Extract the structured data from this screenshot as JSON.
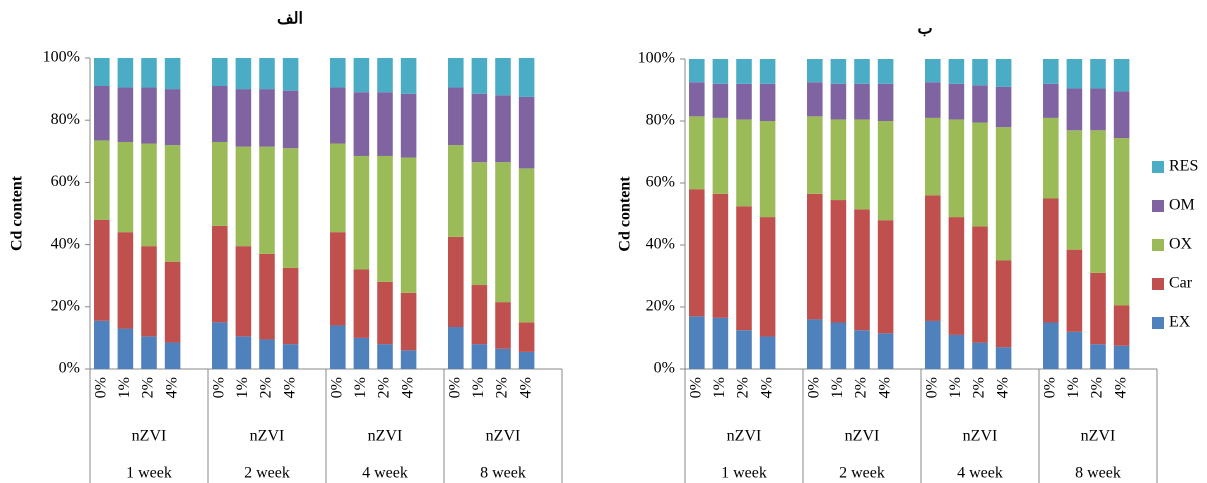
{
  "chart_data": [
    {
      "type": "stacked_bar",
      "title": "الف",
      "ylabel": "Cd content",
      "categories": [
        "0%",
        "1%",
        "2%",
        "4%",
        null,
        "0%",
        "1%",
        "2%",
        "4%",
        null,
        "0%",
        "1%",
        "2%",
        "4%",
        null,
        "0%",
        "1%",
        "2%",
        "4%",
        null
      ],
      "groups": [
        {
          "label": "nZVI",
          "period": "1 week"
        },
        {
          "label": "nZVI",
          "period": "2 week"
        },
        {
          "label": "nZVI",
          "period": "4 week"
        },
        {
          "label": "nZVI",
          "period": "8 week"
        }
      ],
      "series": [
        {
          "color": "#4f81bd",
          "values": [
            15.5,
            13,
            10.5,
            8.5,
            null,
            15,
            10.5,
            9.5,
            8,
            null,
            14,
            10,
            8,
            6,
            null,
            13.5,
            8,
            6.5,
            5.5,
            null
          ]
        },
        {
          "color": "#c0504d",
          "values": [
            32.5,
            31,
            29,
            26,
            null,
            31,
            29,
            27.5,
            24.5,
            null,
            30,
            22,
            20,
            18.5,
            null,
            29,
            19,
            15,
            9.5,
            null
          ]
        },
        {
          "color": "#9bbb59",
          "values": [
            25.5,
            29,
            33,
            37.5,
            null,
            27,
            32,
            34.5,
            38.5,
            null,
            28.5,
            36.5,
            40.5,
            43.5,
            null,
            29.5,
            39.5,
            45,
            49.5,
            null
          ]
        },
        {
          "color": "#8064a2",
          "values": [
            17.5,
            17.5,
            18,
            18,
            null,
            18,
            18.5,
            18.5,
            18.5,
            null,
            18,
            20.5,
            20.5,
            20.5,
            null,
            18.5,
            22,
            21.5,
            23,
            null
          ]
        },
        {
          "color": "#4bacc6",
          "values": [
            9,
            9.5,
            9.5,
            10,
            null,
            9,
            10,
            10,
            10.5,
            null,
            9.5,
            11,
            11,
            11.5,
            null,
            9.5,
            11.5,
            12,
            12.5,
            null
          ]
        }
      ],
      "ylim": [
        0,
        100
      ],
      "yticks": [
        {
          "value": 0,
          "label": "0%"
        },
        {
          "value": 20,
          "label": "20%"
        },
        {
          "value": 40,
          "label": "40%"
        },
        {
          "value": 60,
          "label": "60%"
        },
        {
          "value": 80,
          "label": "80%"
        },
        {
          "value": 100,
          "label": "100%"
        }
      ]
    },
    {
      "type": "stacked_bar",
      "title": "ب",
      "ylabel": "Cd content",
      "categories": [
        "0%",
        "1%",
        "2%",
        "4%",
        null,
        "0%",
        "1%",
        "2%",
        "4%",
        null,
        "0%",
        "1%",
        "2%",
        "4%",
        null,
        "0%",
        "1%",
        "2%",
        "4%",
        null
      ],
      "groups": [
        {
          "label": "nZVI",
          "period": "1 week"
        },
        {
          "label": "nZVI",
          "period": "2 week"
        },
        {
          "label": "nZVI",
          "period": "4 week"
        },
        {
          "label": "nZVI",
          "period": "8 week"
        }
      ],
      "series": [
        {
          "name": "EX",
          "color": "#4f81bd",
          "values": [
            17,
            16.5,
            12.5,
            10.5,
            null,
            16,
            15,
            12.5,
            11.5,
            null,
            15.5,
            11,
            8.5,
            7,
            null,
            15,
            12,
            8,
            7.5,
            null
          ]
        },
        {
          "name": "Car",
          "color": "#c0504d",
          "values": [
            41,
            40,
            40,
            38.5,
            null,
            40.5,
            39.5,
            39,
            36.5,
            null,
            40.5,
            38,
            37.5,
            28,
            null,
            40,
            26.5,
            23,
            13,
            null
          ]
        },
        {
          "name": "OX",
          "color": "#9bbb59",
          "values": [
            23.5,
            24.5,
            28,
            31,
            null,
            25,
            26,
            29,
            32,
            null,
            25,
            31.5,
            33.5,
            43,
            null,
            26,
            38.5,
            46,
            54,
            null
          ]
        },
        {
          "name": "OM",
          "color": "#8064a2",
          "values": [
            11,
            11,
            11.5,
            12,
            null,
            11,
            11.5,
            11.5,
            12,
            null,
            11.5,
            11.5,
            12,
            13,
            null,
            11,
            13.5,
            13.5,
            15,
            null
          ]
        },
        {
          "name": "RES",
          "color": "#4bacc6",
          "values": [
            7.5,
            8,
            8,
            8,
            null,
            7.5,
            8,
            8,
            8,
            null,
            7.5,
            8,
            8.5,
            9,
            null,
            8,
            9.5,
            9.5,
            10.5,
            null
          ]
        }
      ],
      "ylim": [
        0,
        100
      ],
      "yticks": [
        {
          "value": 0,
          "label": "0%"
        },
        {
          "value": 20,
          "label": "20%"
        },
        {
          "value": 40,
          "label": "40%"
        },
        {
          "value": 60,
          "label": "60%"
        },
        {
          "value": 80,
          "label": "80%"
        },
        {
          "value": 100,
          "label": "100%"
        }
      ],
      "legend": "right"
    }
  ]
}
